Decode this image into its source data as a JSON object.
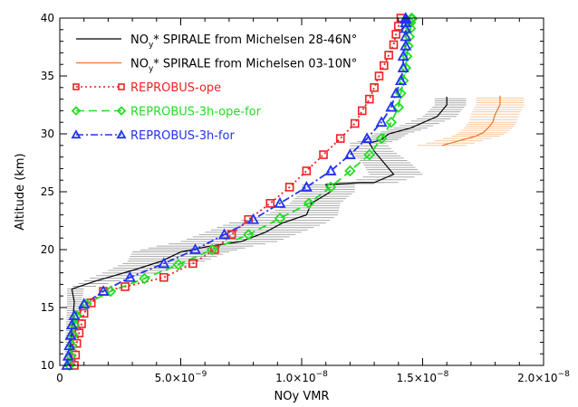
{
  "chart_data": {
    "type": "line",
    "xlabel": "NOy VMR",
    "ylabel": "Altitude (km)",
    "xlim": [
      0,
      2e-08
    ],
    "ylim": [
      10,
      40
    ],
    "x_tick_values": [
      0,
      5e-09,
      1e-08,
      1.5e-08,
      2e-08
    ],
    "x_tick_labels": [
      {
        "mant": "0",
        "exp": ""
      },
      {
        "mant": "5.0×10",
        "exp": "−9"
      },
      {
        "mant": "1.0×10",
        "exp": "−8"
      },
      {
        "mant": "1.5×10",
        "exp": "−8"
      },
      {
        "mant": "2.0×10",
        "exp": "−8"
      }
    ],
    "y_tick_values": [
      10,
      15,
      20,
      25,
      30,
      35,
      40
    ],
    "y_tick_labels": [
      "10",
      "15",
      "20",
      "25",
      "30",
      "35",
      "40"
    ],
    "colors": {
      "michelsen_mid": "#000000",
      "michelsen_mid_band": "#aaaaaa",
      "michelsen_trop": "#e8742a",
      "michelsen_trop_band": "#fbc9a0",
      "ope": "#ee2222",
      "ope_for": "#22dd22",
      "for": "#2233ee"
    },
    "series": [
      {
        "key": "michelsen_mid",
        "legend_pre": "NO",
        "legend_sub": "y",
        "legend_post": "* SPIRALE from Michelsen 28-46N°",
        "style": "solid",
        "marker": "none",
        "x": [
          4e-10,
          5e-10,
          6e-10,
          5e-10,
          1.5e-09,
          3e-09,
          4.2e-09,
          5e-09,
          6.2e-09,
          7.5e-09,
          8.5e-09,
          9.2e-09,
          1.02e-08,
          1.04e-08,
          1.12e-08,
          1.1e-08,
          1.18e-08,
          1.24e-08,
          1.3e-08,
          1.38e-08,
          1.34e-08,
          1.3e-08,
          1.28e-08,
          1.33e-08,
          1.36e-08,
          1.45e-08,
          1.56e-08,
          1.6e-08,
          1.6e-08
        ],
        "y": [
          10,
          13,
          15.5,
          16.6,
          17.3,
          18.2,
          19.0,
          19.8,
          20.3,
          20.7,
          21.5,
          22.3,
          23.0,
          24.0,
          25.0,
          25.6,
          25.7,
          25.8,
          25.8,
          26.5,
          27.5,
          28.5,
          29.2,
          29.5,
          30.0,
          30.5,
          31.5,
          32.5,
          33.2
        ],
        "band_lo": [
          2e-10,
          2.5e-10,
          3e-10,
          3e-10,
          1e-09,
          2e-09,
          2.8e-09,
          3e-09,
          4e-09,
          5e-09,
          6e-09,
          7e-09,
          8.5e-09,
          9.5e-09,
          1e-08,
          1e-08,
          1.1e-08,
          1.15e-08,
          1.2e-08,
          1.28e-08,
          1.25e-08,
          1.2e-08,
          1.2e-08,
          1.26e-08,
          1.3e-08,
          1.38e-08,
          1.5e-08,
          1.55e-08,
          1.55e-08
        ],
        "band_hi": [
          6e-10,
          8e-10,
          9e-10,
          1e-09,
          2.5e-09,
          4.5e-09,
          6e-09,
          7e-09,
          8e-09,
          9e-09,
          1e-08,
          1.1e-08,
          1.15e-08,
          1.16e-08,
          1.22e-08,
          1.22e-08,
          1.3e-08,
          1.34e-08,
          1.4e-08,
          1.5e-08,
          1.45e-08,
          1.38e-08,
          1.35e-08,
          1.4e-08,
          1.44e-08,
          1.52e-08,
          1.64e-08,
          1.68e-08,
          1.68e-08
        ]
      },
      {
        "key": "michelsen_trop",
        "legend_pre": "NO",
        "legend_sub": "y",
        "legend_post": "* SPIRALE from Michelsen 03-10N°",
        "style": "solid",
        "marker": "none",
        "x": [
          1.58e-08,
          1.65e-08,
          1.72e-08,
          1.75e-08,
          1.77e-08,
          1.79e-08,
          1.8e-08,
          1.82e-08,
          1.82e-08
        ],
        "y": [
          29.0,
          29.4,
          29.8,
          30.1,
          30.5,
          31.0,
          31.7,
          32.5,
          33.3
        ],
        "band_lo": [
          1.48e-08,
          1.55e-08,
          1.62e-08,
          1.65e-08,
          1.67e-08,
          1.69e-08,
          1.7e-08,
          1.72e-08,
          1.72e-08
        ],
        "band_hi": [
          1.68e-08,
          1.75e-08,
          1.82e-08,
          1.85e-08,
          1.87e-08,
          1.89e-08,
          1.9e-08,
          1.92e-08,
          1.92e-08
        ]
      },
      {
        "key": "ope",
        "legend_pre": "REPROBUS-ope",
        "legend_sub": "",
        "legend_post": "",
        "style": "dotted",
        "marker": "square",
        "x": [
          6e-10,
          6.5e-10,
          7e-10,
          8e-10,
          9e-10,
          1e-09,
          1.3e-09,
          1.8e-09,
          2.7e-09,
          4.3e-09,
          5.5e-09,
          6.4e-09,
          7.1e-09,
          7.8e-09,
          8.7e-09,
          9.5e-09,
          1.02e-08,
          1.09e-08,
          1.16e-08,
          1.22e-08,
          1.25e-08,
          1.28e-08,
          1.3e-08,
          1.32e-08,
          1.34e-08,
          1.36e-08,
          1.38e-08,
          1.39e-08,
          1.4e-08,
          1.41e-08
        ],
        "y": [
          10,
          10.9,
          11.9,
          12.8,
          13.6,
          14.5,
          15.4,
          16.4,
          16.8,
          17.6,
          18.8,
          20.0,
          21.3,
          22.6,
          24.0,
          25.4,
          26.8,
          28.2,
          29.6,
          30.9,
          32.0,
          33.0,
          34.0,
          35.0,
          35.9,
          36.8,
          37.7,
          38.6,
          39.3,
          40.0
        ]
      },
      {
        "key": "ope_for",
        "legend_pre": "REPROBUS-3h-ope-for",
        "legend_sub": "",
        "legend_post": "",
        "style": "dashed",
        "marker": "diamond",
        "x": [
          4e-10,
          4.5e-10,
          5e-10,
          5.5e-10,
          6e-10,
          7e-10,
          1.1e-09,
          2.1e-09,
          3.5e-09,
          4.9e-09,
          6.3e-09,
          7.8e-09,
          9.1e-09,
          1.03e-08,
          1.12e-08,
          1.2e-08,
          1.28e-08,
          1.33e-08,
          1.37e-08,
          1.4e-08,
          1.41e-08,
          1.42e-08,
          1.43e-08,
          1.435e-08,
          1.44e-08,
          1.445e-08,
          1.45e-08,
          1.45e-08,
          1.455e-08,
          1.455e-08
        ],
        "y": [
          10,
          10.8,
          11.7,
          12.6,
          13.5,
          14.3,
          15.3,
          16.4,
          17.5,
          18.7,
          20.0,
          21.3,
          22.7,
          24.0,
          25.4,
          26.8,
          28.2,
          29.6,
          31.0,
          32.3,
          33.5,
          34.6,
          35.7,
          36.7,
          37.6,
          38.4,
          39.1,
          39.6,
          39.9,
          40.0
        ]
      },
      {
        "key": "for",
        "legend_pre": "REPROBUS-3h-for",
        "legend_sub": "",
        "legend_post": "",
        "style": "dashdot",
        "marker": "triangle",
        "x": [
          3e-10,
          3.5e-10,
          4e-10,
          4.5e-10,
          5e-10,
          6e-10,
          1e-09,
          1.8e-09,
          2.9e-09,
          4.3e-09,
          5.6e-09,
          6.8e-09,
          8e-09,
          9.1e-09,
          1.02e-08,
          1.12e-08,
          1.2e-08,
          1.27e-08,
          1.33e-08,
          1.37e-08,
          1.39e-08,
          1.41e-08,
          1.42e-08,
          1.42e-08,
          1.43e-08,
          1.43e-08,
          1.43e-08,
          1.43e-08,
          1.43e-08,
          1.43e-08
        ],
        "y": [
          10,
          10.8,
          11.7,
          12.6,
          13.5,
          14.3,
          15.3,
          16.4,
          17.6,
          18.8,
          20.0,
          21.3,
          22.6,
          24.0,
          25.4,
          26.8,
          28.2,
          29.6,
          31.0,
          32.3,
          33.5,
          34.6,
          35.7,
          36.7,
          37.6,
          38.4,
          39.1,
          39.6,
          39.9,
          40.0
        ]
      }
    ]
  }
}
